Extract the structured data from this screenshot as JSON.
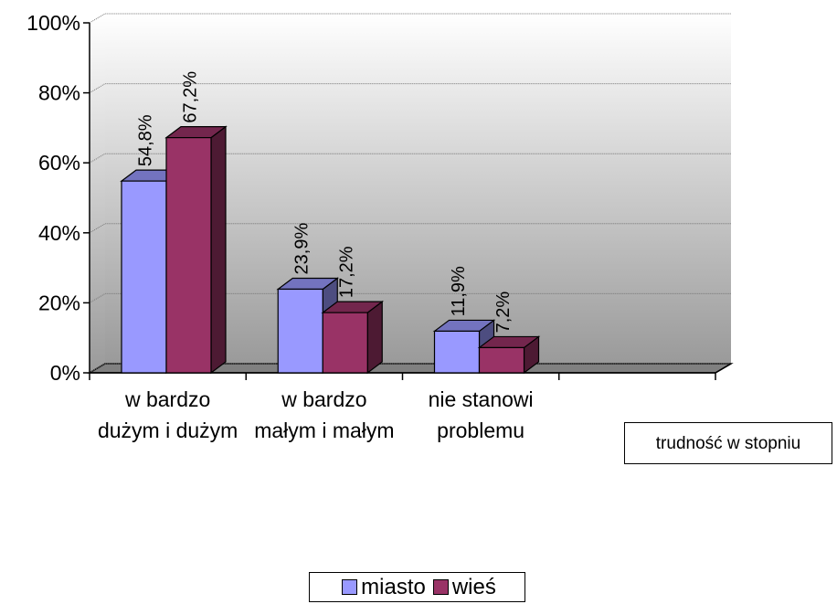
{
  "chart_data": {
    "type": "bar3d",
    "categories": [
      "w bardzo dużym i dużym",
      "w bardzo małym i małym",
      "nie stanowi problemu",
      null
    ],
    "series": [
      {
        "name": "miasto",
        "color": "#9999ff",
        "values": [
          54.8,
          23.9,
          11.9,
          null
        ],
        "value_labels": [
          "54,8%",
          "23,9%",
          "11,9%",
          null
        ]
      },
      {
        "name": "wieś",
        "color": "#993366",
        "values": [
          67.2,
          17.2,
          7.2,
          null
        ],
        "value_labels": [
          "67,2%",
          "17,2%",
          "7,2%",
          null
        ]
      }
    ],
    "x_label": "trudność w stopniu",
    "ylim": [
      0,
      100
    ],
    "yticks": [
      {
        "value": 0,
        "label": "0%"
      },
      {
        "value": 20,
        "label": "20%"
      },
      {
        "value": 40,
        "label": "40%"
      },
      {
        "value": 60,
        "label": "60%"
      },
      {
        "value": 80,
        "label": "80%"
      },
      {
        "value": 100,
        "label": "100%"
      }
    ],
    "grid": true,
    "legend": "bottom"
  }
}
